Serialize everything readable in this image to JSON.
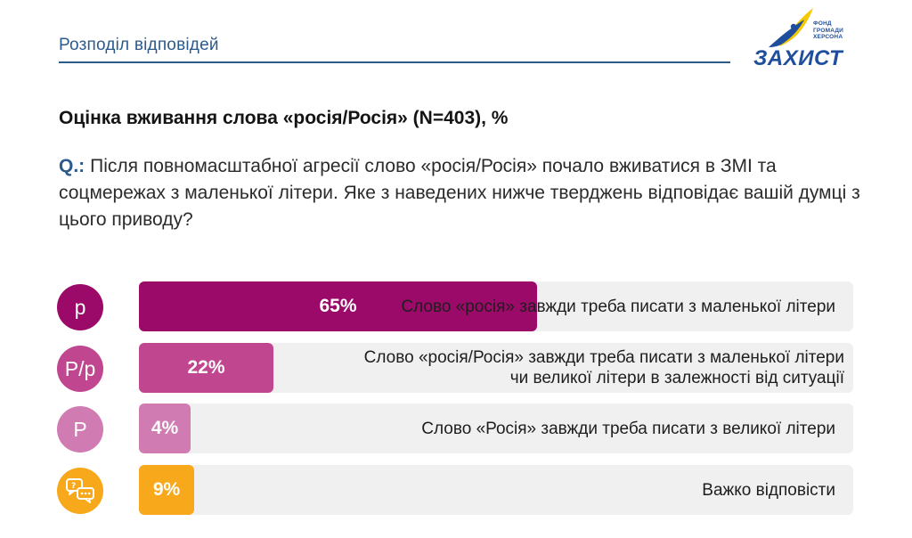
{
  "header": {
    "section_title": "Розподіл відповідей"
  },
  "logo": {
    "word": "ЗАХИСТ",
    "small_lines": [
      "ФОНД",
      "ГРОМАДИ",
      "ХЕРСОНА"
    ],
    "colors": {
      "blue": "#1f4f9c",
      "yellow": "#f5c800"
    }
  },
  "chart_title": "Оцінка вживання слова «росія/Росія» (N=403), %",
  "question": {
    "label": "Q.:",
    "text": "Після повномасштабної агресії слово «росія/Росія» почало вживатися в ЗМІ та соцмережах з маленької літери. Яке з наведених нижче тверджень відповідає вашій думці з цього приводу?"
  },
  "rows": [
    {
      "icon_text": "р",
      "icon_name": "lowercase-r-icon",
      "value_label": "65%",
      "label": "Слово «росія» завжди треба писати з маленької літери",
      "color": "#9b0a68"
    },
    {
      "icon_text": "Р/р",
      "icon_name": "mixed-case-r-icon",
      "value_label": "22%",
      "label": "Слово «росія/Росія» завжди треба писати з маленької літери чи великої літери в залежності від ситуації",
      "color": "#c0478f"
    },
    {
      "icon_text": "Р",
      "icon_name": "uppercase-r-icon",
      "value_label": "4%",
      "label": "Слово «Росія» завжди треба писати з великої літери",
      "color": "#d07bb2"
    },
    {
      "icon_text": "",
      "icon_name": "chat-question-icon",
      "value_label": "9%",
      "label": "Важко відповісти",
      "color": "#f7a81b"
    }
  ],
  "chart_data": {
    "type": "bar",
    "orientation": "horizontal",
    "title": "Оцінка вживання слова «росія/Росія» (N=403), %",
    "categories": [
      "Слово «росія» завжди треба писати з маленької літери",
      "Слово «росія/Росія» завжди треба писати з маленької літери чи великої літери в залежності від ситуації",
      "Слово «Росія» завжди треба писати з великої літери",
      "Важко відповісти"
    ],
    "values": [
      65,
      22,
      4,
      9
    ],
    "xlim": [
      0,
      100
    ],
    "grid": false,
    "colors": [
      "#9b0a68",
      "#c0478f",
      "#d07bb2",
      "#f7a81b"
    ]
  }
}
